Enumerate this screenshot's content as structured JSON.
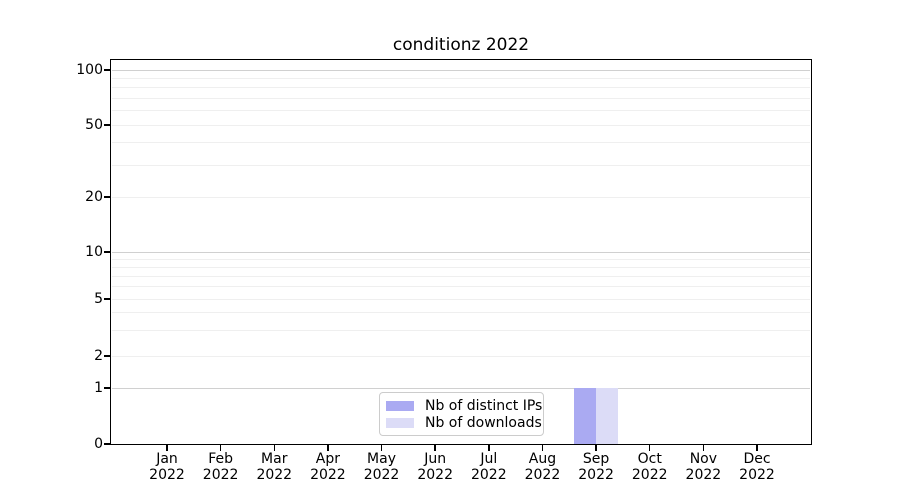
{
  "figure": {
    "background": "#ffffff"
  },
  "chart_data": {
    "type": "bar",
    "title": "conditionz 2022",
    "categories": [
      "Jan",
      "Feb",
      "Mar",
      "Apr",
      "May",
      "Jun",
      "Jul",
      "Aug",
      "Sep",
      "Oct",
      "Nov",
      "Dec"
    ],
    "year_label": "2022",
    "series": [
      {
        "name": "Nb of distinct IPs",
        "color": "#aaaaf2",
        "values": [
          0,
          0,
          0,
          0,
          0,
          0,
          0,
          0,
          1,
          0,
          0,
          0
        ]
      },
      {
        "name": "Nb of downloads",
        "color": "#dcdcf7",
        "values": [
          0,
          0,
          0,
          0,
          0,
          0,
          0,
          0,
          1,
          0,
          0,
          0
        ]
      }
    ],
    "xlabel": "",
    "ylabel": "",
    "yscale": "symlog",
    "ylim": [
      0,
      113
    ],
    "y_ticks_labeled": [
      0,
      1,
      2,
      5,
      10,
      20,
      50,
      100
    ],
    "y_ticks_major_grid": [
      1,
      10,
      100
    ],
    "y_ticks_minor_grid": [
      2,
      3,
      4,
      5,
      6,
      7,
      8,
      9,
      20,
      30,
      40,
      50,
      60,
      70,
      80,
      90
    ],
    "grid": "horizontal major+minor",
    "legend": {
      "position": "lower center",
      "entries": [
        "Nb of distinct IPs",
        "Nb of downloads"
      ]
    }
  },
  "colors": {
    "grid_major": "#d0d0d0",
    "grid_minor": "#efefef",
    "spine": "#000000",
    "legend_border": "#cccccc",
    "text": "#000000"
  }
}
